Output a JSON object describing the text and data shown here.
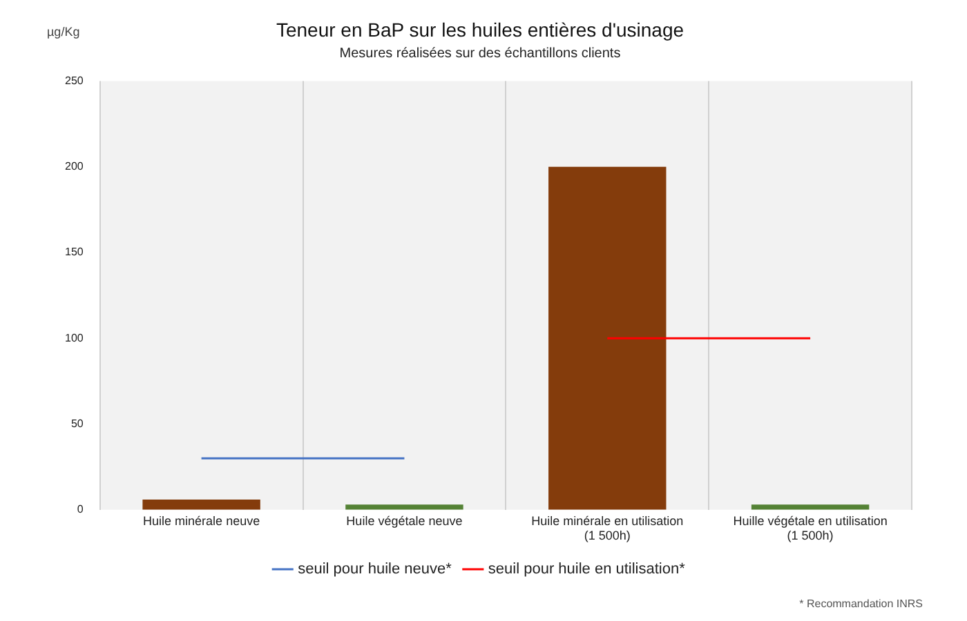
{
  "chart_data": {
    "type": "bar",
    "title": "Teneur en BaP sur les huiles entières d'usinage",
    "subtitle": "Mesures réalisées sur des échantillons clients",
    "ylabel": "µg/Kg",
    "categories": [
      "Huile minérale neuve",
      "Huile végétale neuve",
      "Huile minérale en utilisation\n(1 500h)",
      "Huille végétale en utilisation\n(1 500h)"
    ],
    "series": [
      {
        "colors": [
          "#843c0c",
          "#548235",
          "#843c0c",
          "#548235"
        ],
        "values": [
          6,
          3,
          200,
          3
        ]
      },
      {
        "type": "line",
        "name": "seuil pour huile neuve*",
        "color": "#4472c4",
        "values": [
          30,
          30,
          null,
          null
        ]
      },
      {
        "type": "line",
        "name": "seuil pour huile en utilisation*",
        "color": "#ff0000",
        "values": [
          null,
          null,
          100,
          100
        ]
      }
    ],
    "ylim": [
      0,
      250
    ],
    "yticks": [
      0,
      50,
      100,
      150,
      200,
      250
    ],
    "grid": "x",
    "legend": "bottom",
    "marker": "none",
    "annotations": [
      "* Recommandation INRS"
    ]
  }
}
